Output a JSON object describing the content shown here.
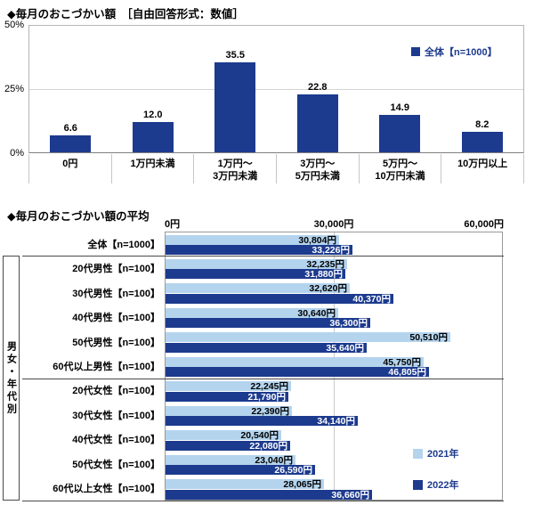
{
  "colors": {
    "navy": "#1C3A8E",
    "light_blue": "#B4D4EE"
  },
  "chart_data": [
    {
      "type": "bar",
      "title": "◆毎月のおこづかい額　［自由回答形式：数値］",
      "legend": [
        "全体【n=1000】"
      ],
      "categories": [
        "0円",
        "1万円未満",
        "1万円～\n3万円未満",
        "3万円～\n5万円未満",
        "5万円～\n10万円未満",
        "10万円以上"
      ],
      "values": [
        6.6,
        12.0,
        35.5,
        22.8,
        14.9,
        8.2
      ],
      "unit": "%",
      "ylim": [
        0,
        50
      ],
      "ytick_labels": [
        "50%",
        "25%",
        "0%"
      ],
      "grid": "horizontal line at 25%",
      "legend_position": "top-right",
      "bar_color": "#1C3A8E"
    },
    {
      "type": "bar-horizontal",
      "title": "◆毎月のおこづかい額の平均",
      "categories": [
        "全体【n=1000】",
        "20代男性【n=100】",
        "30代男性【n=100】",
        "40代男性【n=100】",
        "50代男性【n=100】",
        "60代以上男性【n=100】",
        "20代女性【n=100】",
        "30代女性【n=100】",
        "40代女性【n=100】",
        "50代女性【n=100】",
        "60代以上女性【n=100】"
      ],
      "series": [
        {
          "name": "2021年",
          "color": "#B4D4EE",
          "values": [
            30804,
            32235,
            32620,
            30640,
            50510,
            45750,
            22245,
            22390,
            20540,
            23040,
            28065
          ]
        },
        {
          "name": "2022年",
          "color": "#1C3A8E",
          "values": [
            33226,
            31880,
            40370,
            36300,
            35640,
            46805,
            21790,
            34140,
            22080,
            26590,
            36660
          ]
        }
      ],
      "unit": "円",
      "xlim": [
        0,
        60000
      ],
      "xtick_labels": [
        "0円",
        "30,000円",
        "60,000円"
      ],
      "group_label": "男女・年代別",
      "group_separators_after_row": [
        0,
        5
      ],
      "legend_position": "bottom-right"
    }
  ]
}
